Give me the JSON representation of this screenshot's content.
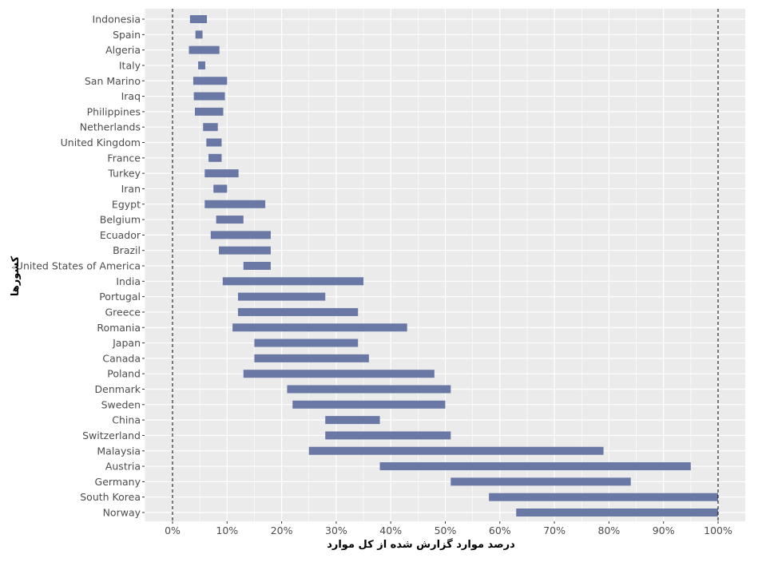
{
  "chart_data": {
    "type": "bar",
    "orientation": "horizontal-range",
    "title": "",
    "xlabel": "درصد موارد گزارش شده از کل موارد",
    "ylabel": "کشورها",
    "xlim": [
      -5,
      105
    ],
    "x_ticks": [
      0,
      10,
      20,
      30,
      40,
      50,
      60,
      70,
      80,
      90,
      100
    ],
    "x_tick_labels": [
      "0%",
      "10%",
      "20%",
      "30%",
      "40%",
      "50%",
      "60%",
      "70%",
      "80%",
      "90%",
      "100%"
    ],
    "reference_lines": [
      0,
      100
    ],
    "grid": true,
    "legend": "none",
    "colors": {
      "bar": "#6a78a6",
      "panel": "#ebebeb",
      "grid": "#ffffff",
      "reference": "#000000"
    },
    "categories": [
      "Indonesia",
      "Spain",
      "Algeria",
      "Italy",
      "San Marino",
      "Iraq",
      "Philippines",
      "Netherlands",
      "United Kingdom",
      "France",
      "Turkey",
      "Iran",
      "Egypt",
      "Belgium",
      "Ecuador",
      "Brazil",
      "United States of America",
      "India",
      "Portugal",
      "Greece",
      "Romania",
      "Japan",
      "Canada",
      "Poland",
      "Denmark",
      "Sweden",
      "China",
      "Switzerland",
      "Malaysia",
      "Austria",
      "Germany",
      "South Korea",
      "Norway"
    ],
    "ranges": [
      [
        3.2,
        6.3
      ],
      [
        4.2,
        5.5
      ],
      [
        3.0,
        8.6
      ],
      [
        4.7,
        6.0
      ],
      [
        3.8,
        10.0
      ],
      [
        3.9,
        9.6
      ],
      [
        4.1,
        9.3
      ],
      [
        5.6,
        8.3
      ],
      [
        6.2,
        9.0
      ],
      [
        6.6,
        9.0
      ],
      [
        5.9,
        12.1
      ],
      [
        7.5,
        10.0
      ],
      [
        5.9,
        17.0
      ],
      [
        8.0,
        13.0
      ],
      [
        7.0,
        18.0
      ],
      [
        8.5,
        18.0
      ],
      [
        13.0,
        18.0
      ],
      [
        9.2,
        35.0
      ],
      [
        12.0,
        28.0
      ],
      [
        12.0,
        34.0
      ],
      [
        11.0,
        43.0
      ],
      [
        15.0,
        34.0
      ],
      [
        15.0,
        36.0
      ],
      [
        13.0,
        48.0
      ],
      [
        21.0,
        51.0
      ],
      [
        22.0,
        50.0
      ],
      [
        28.0,
        38.0
      ],
      [
        28.0,
        51.0
      ],
      [
        25.0,
        79.0
      ],
      [
        38.0,
        95.0
      ],
      [
        51.0,
        84.0
      ],
      [
        58.0,
        100.0
      ],
      [
        63.0,
        100.0
      ]
    ]
  }
}
